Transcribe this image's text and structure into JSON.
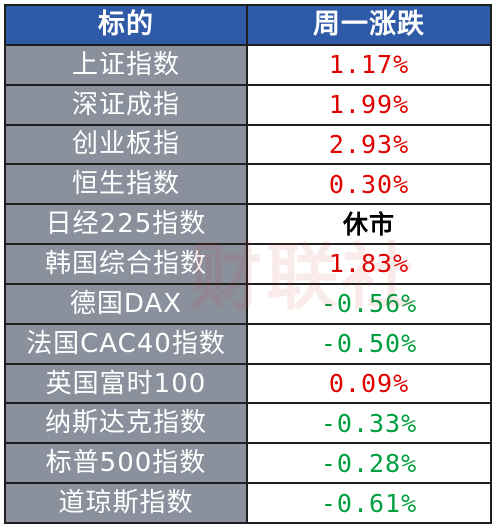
{
  "header": {
    "col_name": "标的",
    "col_change": "周一涨跌"
  },
  "colors": {
    "header_bg": "#2e5aa8",
    "name_bg": "#8a909c",
    "up": "#e00000",
    "down": "#00a040",
    "neutral": "#000000"
  },
  "rows": [
    {
      "name": "上证指数",
      "change": "1.17%",
      "dir": "up"
    },
    {
      "name": "深证成指",
      "change": "1.99%",
      "dir": "up"
    },
    {
      "name": "创业板指",
      "change": "2.93%",
      "dir": "up"
    },
    {
      "name": "恒生指数",
      "change": "0.30%",
      "dir": "up"
    },
    {
      "name": "日经225指数",
      "change": "休市",
      "dir": "neutral"
    },
    {
      "name": "韩国综合指数",
      "change": "1.83%",
      "dir": "up"
    },
    {
      "name": "德国DAX",
      "change": "-0.56%",
      "dir": "down"
    },
    {
      "name": "法国CAC40指数",
      "change": "-0.50%",
      "dir": "down"
    },
    {
      "name": "英国富时100",
      "change": "0.09%",
      "dir": "up"
    },
    {
      "name": "纳斯达克指数",
      "change": "-0.33%",
      "dir": "down"
    },
    {
      "name": "标普500指数",
      "change": "-0.28%",
      "dir": "down"
    },
    {
      "name": "道琼斯指数",
      "change": "-0.61%",
      "dir": "down"
    }
  ],
  "watermark": "财联社"
}
